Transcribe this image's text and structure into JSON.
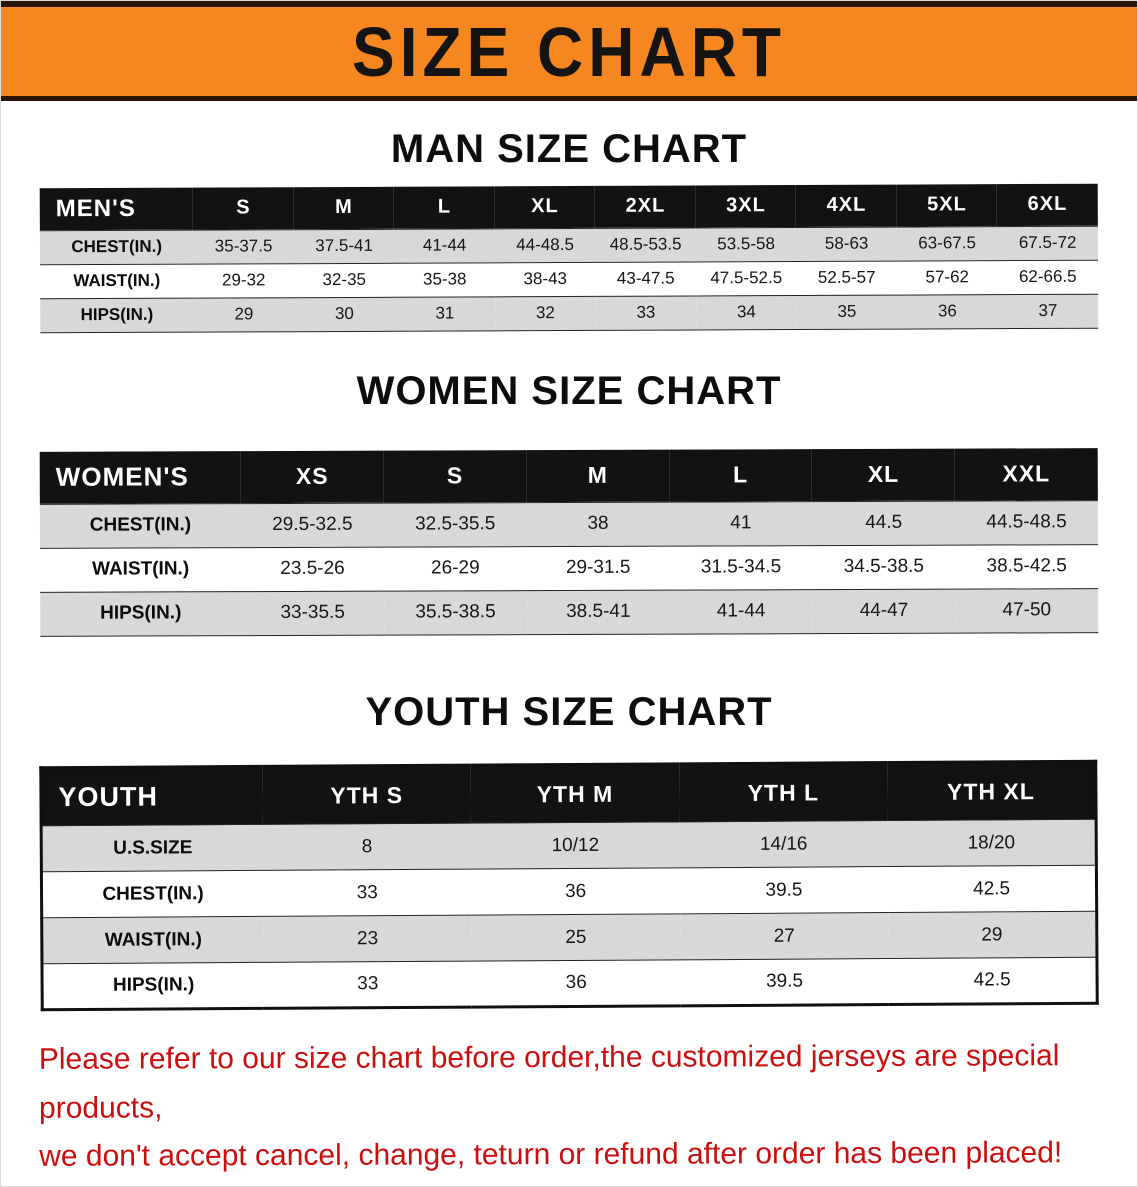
{
  "banner": {
    "title": "SIZE CHART"
  },
  "sections": [
    {
      "heading": "MAN SIZE CHART",
      "table": {
        "header": [
          "MEN'S",
          "S",
          "M",
          "L",
          "XL",
          "2XL",
          "3XL",
          "4XL",
          "5XL",
          "6XL"
        ],
        "rows": [
          [
            "CHEST(IN.)",
            "35-37.5",
            "37.5-41",
            "41-44",
            "44-48.5",
            "48.5-53.5",
            "53.5-58",
            "58-63",
            "63-67.5",
            "67.5-72"
          ],
          [
            "WAIST(IN.)",
            "29-32",
            "32-35",
            "35-38",
            "38-43",
            "43-47.5",
            "47.5-52.5",
            "52.5-57",
            "57-62",
            "62-66.5"
          ],
          [
            "HIPS(IN.)",
            "29",
            "30",
            "31",
            "32",
            "33",
            "34",
            "35",
            "36",
            "37"
          ]
        ]
      }
    },
    {
      "heading": "WOMEN SIZE CHART",
      "table": {
        "header": [
          "WOMEN'S",
          "XS",
          "S",
          "M",
          "L",
          "XL",
          "XXL"
        ],
        "rows": [
          [
            "CHEST(IN.)",
            "29.5-32.5",
            "32.5-35.5",
            "38",
            "41",
            "44.5",
            "44.5-48.5"
          ],
          [
            "WAIST(IN.)",
            "23.5-26",
            "26-29",
            "29-31.5",
            "31.5-34.5",
            "34.5-38.5",
            "38.5-42.5"
          ],
          [
            "HIPS(IN.)",
            "33-35.5",
            "35.5-38.5",
            "38.5-41",
            "41-44",
            "44-47",
            "47-50"
          ]
        ]
      }
    },
    {
      "heading": "YOUTH SIZE CHART",
      "table": {
        "header": [
          "YOUTH",
          "YTH S",
          "YTH M",
          "YTH L",
          "YTH XL"
        ],
        "rows": [
          [
            "U.S.SIZE",
            "8",
            "10/12",
            "14/16",
            "18/20"
          ],
          [
            "CHEST(IN.)",
            "33",
            "36",
            "39.5",
            "42.5"
          ],
          [
            "WAIST(IN.)",
            "23",
            "25",
            "27",
            "29"
          ],
          [
            "HIPS(IN.)",
            "33",
            "36",
            "39.5",
            "42.5"
          ]
        ]
      }
    }
  ],
  "disclaimer": {
    "line1": "Please refer to our size chart before order,the customized jerseys are special products,",
    "line2": "we don't accept cancel, change, teturn or refund after order has been placed!"
  },
  "colors": {
    "banner_orange": "#f6861f",
    "banner_edge": "#2b1507",
    "table_header_black": "#121212",
    "row_gray": "#d8d8d8",
    "row_white": "#ffffff",
    "disclaimer_red": "#cc0e0e"
  }
}
